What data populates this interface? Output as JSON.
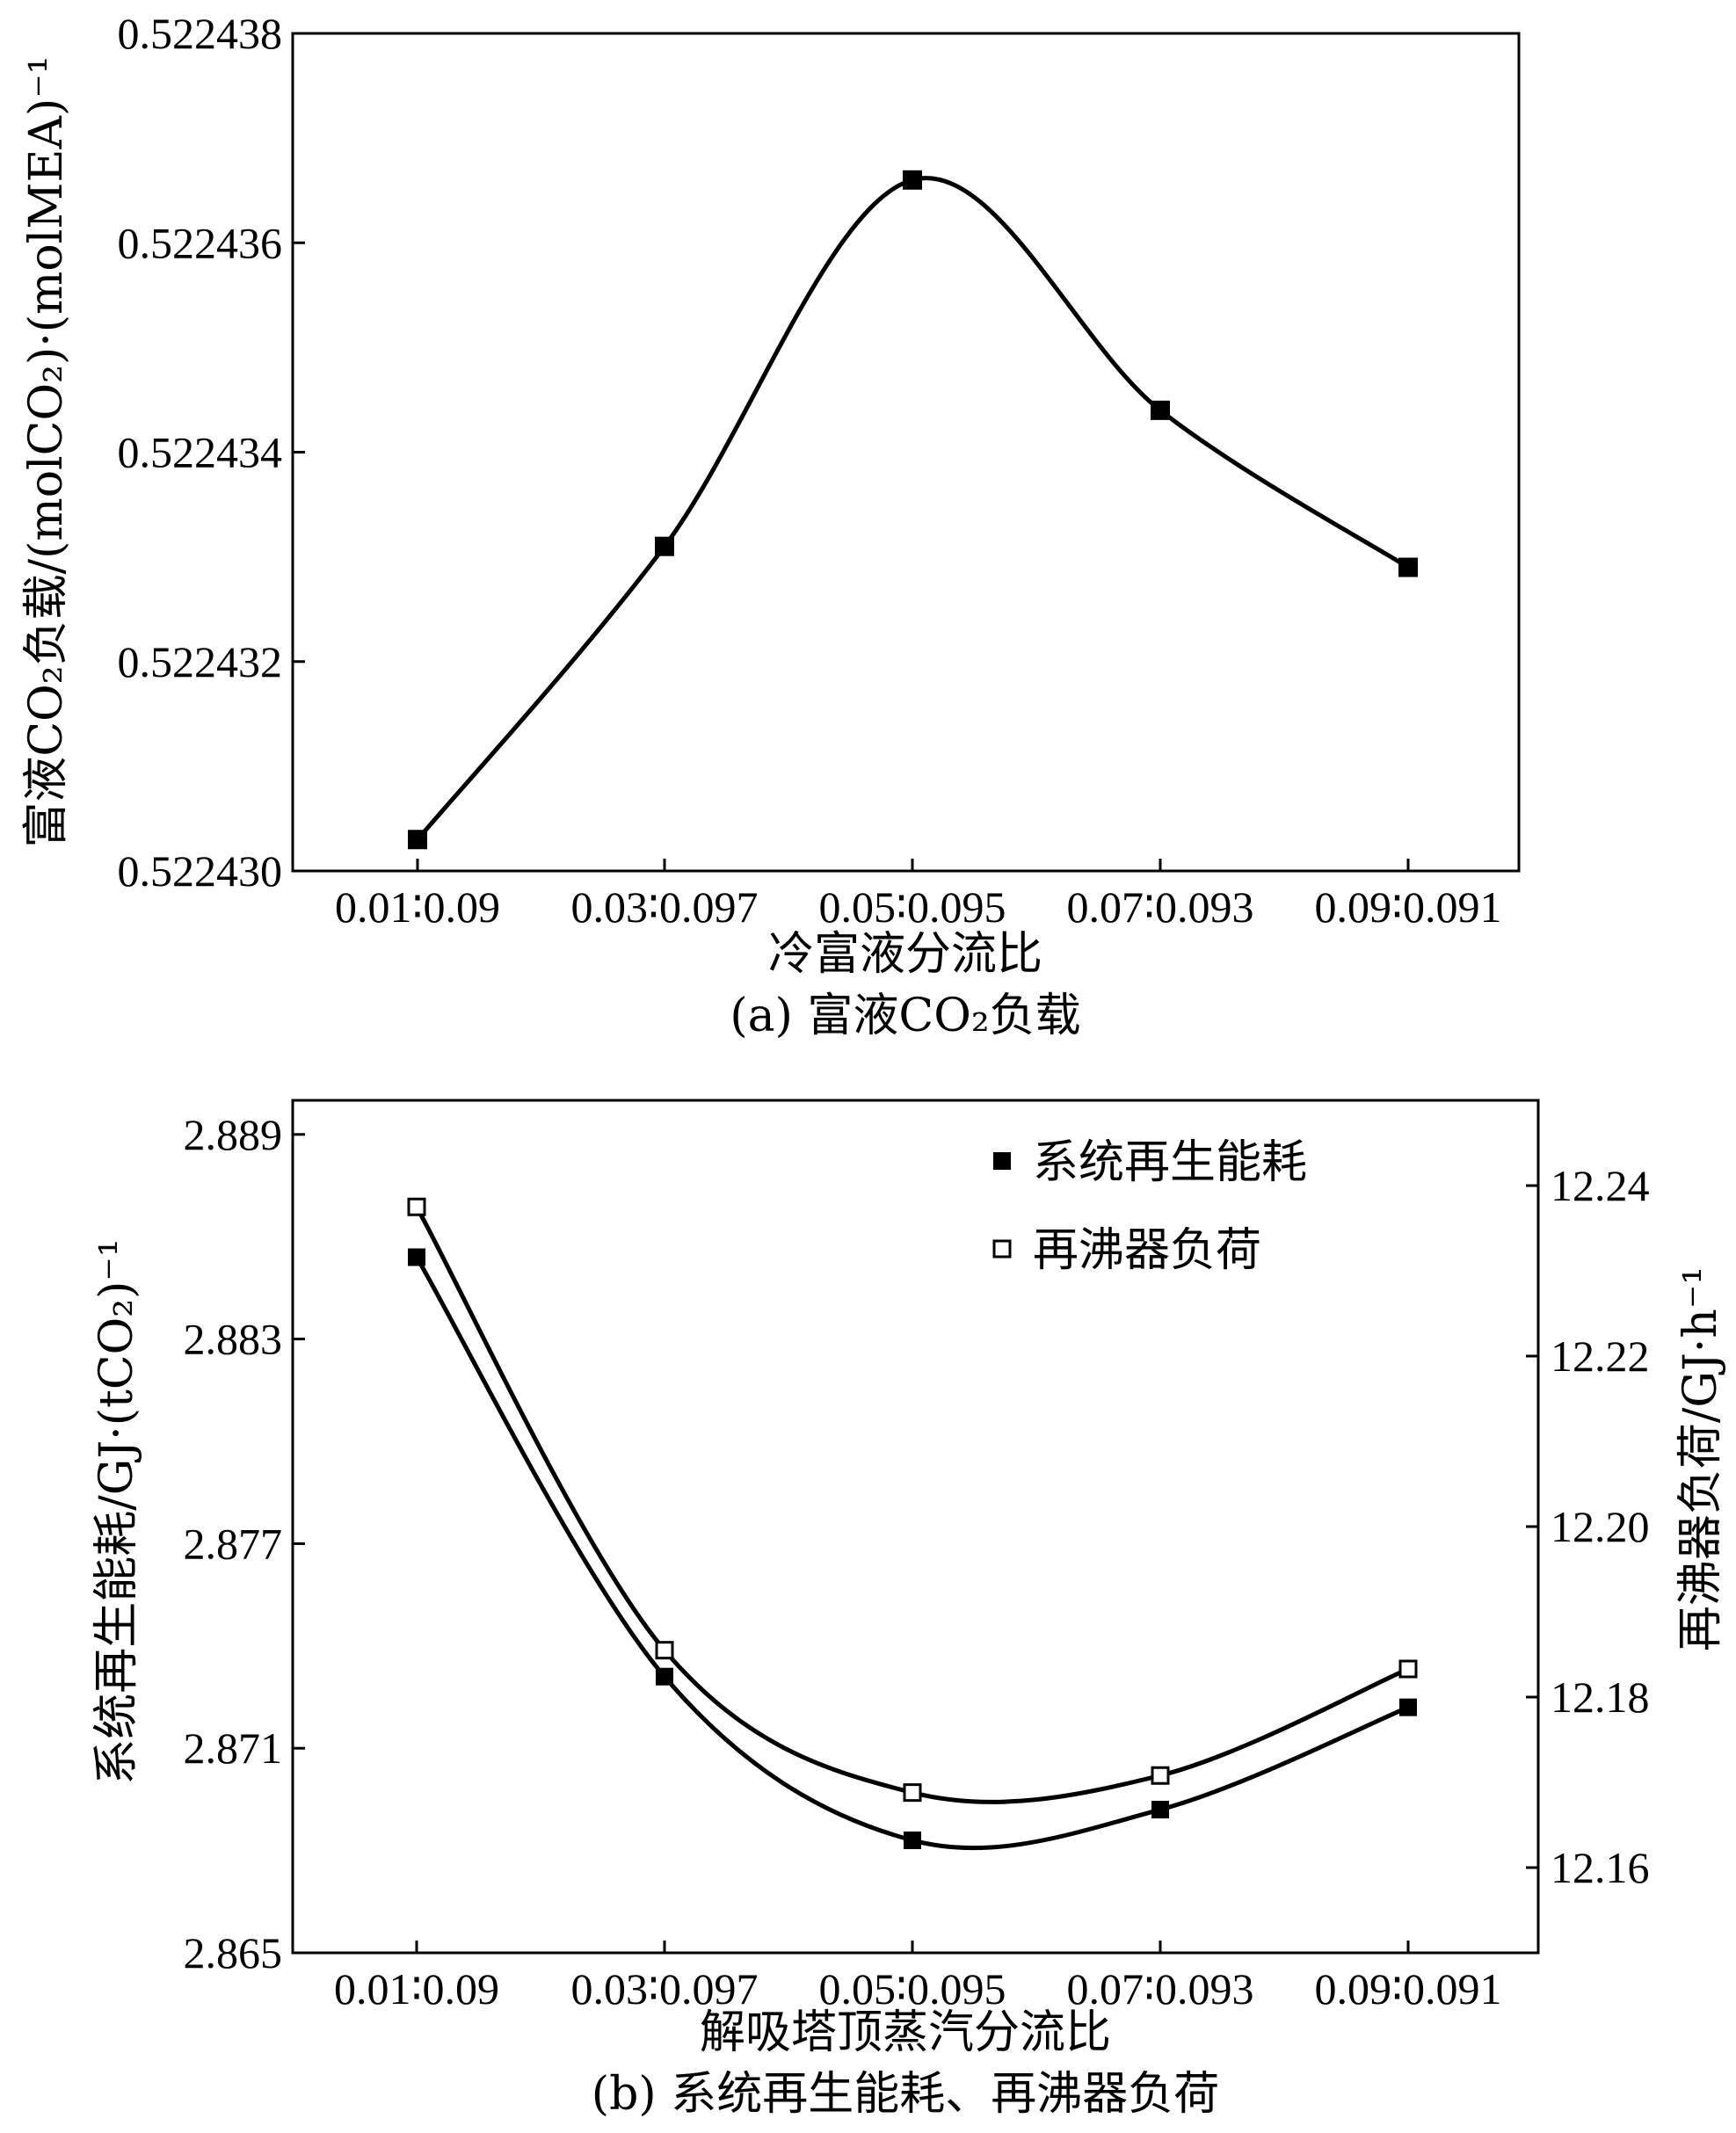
{
  "chart_data": [
    {
      "type": "line",
      "caption": "(a) 富液CO₂负载",
      "xlabel": "冷富液分流比",
      "ylabel": "富液CO₂负载/(molCO₂)·(molMEA)⁻¹",
      "categories": [
        "0.01∶0.09",
        "0.03∶0.097",
        "0.05∶0.095",
        "0.07∶0.093",
        "0.09∶0.091"
      ],
      "yticks": [
        "0.522430",
        "0.522432",
        "0.522434",
        "0.522436",
        "0.522438"
      ],
      "ylim": [
        0.52243,
        0.522438
      ],
      "grid": false,
      "series": [
        {
          "values": [
            0.5224303,
            0.5224331,
            0.5224366,
            0.5224344,
            0.5224329
          ],
          "marker": "filled-square",
          "smooth": true
        }
      ]
    },
    {
      "type": "line",
      "caption": "(b) 系统再生能耗、再沸器负荷",
      "xlabel": "解吸塔顶蒸汽分流比",
      "ylabel_left": "系统再生能耗/GJ·(tCO₂)⁻¹",
      "ylabel_right": "再沸器负荷/GJ·h⁻¹",
      "categories": [
        "0.01∶0.09",
        "0.03∶0.097",
        "0.05∶0.095",
        "0.07∶0.093",
        "0.09∶0.091"
      ],
      "yticks_left": [
        "2.865",
        "2.871",
        "2.877",
        "2.883",
        "2.889"
      ],
      "yticks_right": [
        "12.16",
        "12.18",
        "12.20",
        "12.22",
        "12.24"
      ],
      "ylim_left": [
        2.865,
        2.89
      ],
      "ylim_right": [
        12.15,
        12.25
      ],
      "legend_position": "top-right",
      "grid": false,
      "series": [
        {
          "name": "系统再生能耗",
          "axis": "left",
          "marker": "filled-square",
          "smooth": true,
          "values": [
            2.8854,
            2.8731,
            2.8683,
            2.8692,
            2.8722
          ]
        },
        {
          "name": "再沸器负荷",
          "axis": "right",
          "marker": "open-square",
          "smooth": true,
          "values": [
            12.2375,
            12.1855,
            12.1688,
            12.1708,
            12.1833
          ]
        }
      ]
    }
  ]
}
